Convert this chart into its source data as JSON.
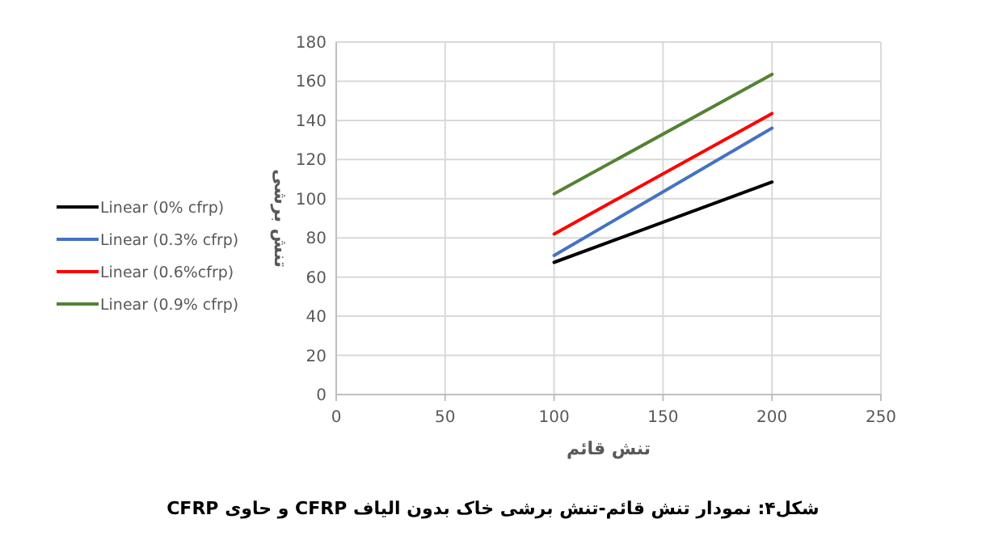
{
  "chart_data": {
    "type": "line",
    "xlabel": "تنش قائم",
    "ylabel": "تنش برشی",
    "x": [
      100,
      200
    ],
    "series": [
      {
        "name": "Linear (0% cfrp)",
        "color": "#000000",
        "values": [
          67.5,
          108.5
        ]
      },
      {
        "name": "Linear (0.3% cfrp)",
        "color": "#4472c4",
        "values": [
          71,
          136
        ]
      },
      {
        "name": "Linear (0.6%cfrp)",
        "color": "#ff0000",
        "values": [
          82,
          143.5
        ]
      },
      {
        "name": "Linear (0.9% cfrp)",
        "color": "#548235",
        "values": [
          102.5,
          163.5
        ]
      }
    ],
    "xlim": [
      0,
      250
    ],
    "xticks": [
      0,
      50,
      100,
      150,
      200,
      250
    ],
    "ylim": [
      0,
      180
    ],
    "yticks": [
      0,
      20,
      40,
      60,
      80,
      100,
      120,
      140,
      160,
      180
    ],
    "grid": true,
    "legend": "left",
    "marker": "none",
    "line_style": "solid",
    "annotations": [
      "شکل۴: نمودار تنش قائم-تنش برشی خاک بدون الیاف CFRP و حاوی CFRP"
    ]
  }
}
